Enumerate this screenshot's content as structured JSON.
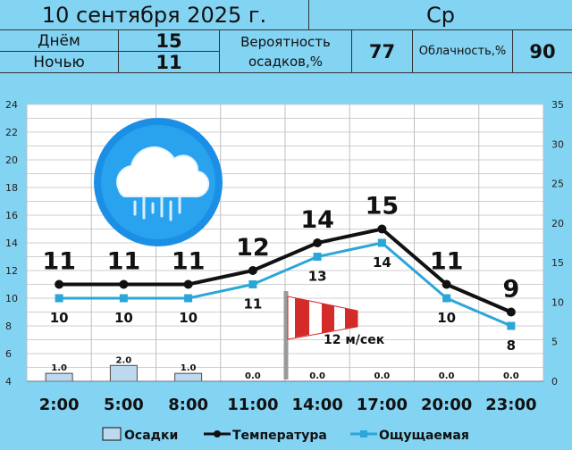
{
  "header": {
    "date": "10 сентября 2025 г.",
    "weekday": "Ср",
    "day_label": "Днём",
    "day_value": "15",
    "night_label": "Ночью",
    "night_value": "11",
    "precip_prob_label_1": "Вероятность",
    "precip_prob_label_2": "осадков,%",
    "precip_prob_value": "77",
    "cloud_label": "Облачность,%",
    "cloud_value": "90"
  },
  "weather_icon": "rain-cloud-icon",
  "wind": {
    "icon": "windsock-icon",
    "label": "12 м/сек"
  },
  "chart_data": {
    "type": "line",
    "categories": [
      "2:00",
      "5:00",
      "8:00",
      "11:00",
      "14:00",
      "17:00",
      "20:00",
      "23:00"
    ],
    "left_axis": {
      "min": 4,
      "max": 24,
      "ticks": [
        4,
        6,
        8,
        10,
        12,
        14,
        16,
        18,
        20,
        22,
        24
      ]
    },
    "right_axis": {
      "min": 0,
      "max": 35,
      "ticks": [
        0,
        5,
        10,
        15,
        20,
        25,
        30,
        35
      ]
    },
    "grid": true,
    "series": [
      {
        "name": "Осадки",
        "kind": "bar",
        "axis": "right",
        "values": [
          1.0,
          2.0,
          1.0,
          0.0,
          0.0,
          0.0,
          0.0,
          0.0
        ],
        "labels": [
          "1.0",
          "2.0",
          "1.0",
          "0.0",
          "0.0",
          "0.0",
          "0.0",
          "0.0"
        ],
        "color": "#bcd9ef"
      },
      {
        "name": "Температура",
        "kind": "line",
        "axis": "left",
        "values": [
          11,
          11,
          11,
          12,
          14,
          15,
          11,
          9
        ],
        "color": "#111111"
      },
      {
        "name": "Ощущаемая",
        "kind": "line",
        "axis": "left",
        "values": [
          10,
          10,
          10,
          11,
          13,
          14,
          10,
          8
        ],
        "color": "#2aa6d9"
      }
    ],
    "legend_position": "bottom"
  }
}
